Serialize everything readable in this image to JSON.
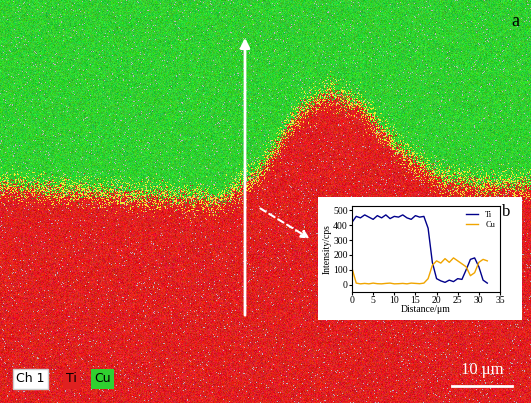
{
  "panel_labels": [
    "a",
    "b"
  ],
  "map_legend": {
    "channel": "Ch 1",
    "elements": [
      {
        "name": "Ti",
        "color": "#e02020"
      },
      {
        "name": "Cu",
        "color": "#30d030"
      }
    ]
  },
  "scale_bar": "10 μm",
  "chart_data": {
    "type": "line",
    "x_label": "Distance/μm",
    "y_label": "Intensity/cps",
    "x": [
      0,
      1,
      2,
      3,
      4,
      5,
      6,
      7,
      8,
      9,
      10,
      11,
      12,
      13,
      14,
      15,
      16,
      17,
      18,
      19,
      20,
      21,
      22,
      23,
      24,
      25,
      26,
      27,
      28,
      29,
      30,
      31,
      32
    ],
    "series": [
      {
        "name": "Ti",
        "color": "#00008b",
        "values": [
          420,
          460,
          450,
          470,
          455,
          440,
          465,
          450,
          470,
          445,
          460,
          455,
          470,
          450,
          440,
          465,
          455,
          460,
          380,
          150,
          40,
          25,
          15,
          30,
          20,
          40,
          35,
          100,
          170,
          180,
          120,
          30,
          10
        ]
      },
      {
        "name": "Cu",
        "color": "#f0a500",
        "values": [
          110,
          10,
          5,
          8,
          5,
          10,
          6,
          5,
          8,
          10,
          5,
          6,
          8,
          5,
          10,
          8,
          6,
          10,
          40,
          130,
          160,
          145,
          175,
          150,
          180,
          160,
          140,
          120,
          60,
          80,
          150,
          170,
          160
        ]
      }
    ],
    "xlim": [
      0,
      35
    ],
    "xticks": [
      0,
      5,
      10,
      15,
      20,
      25,
      30,
      35
    ],
    "ylim": [
      -50,
      530
    ],
    "yticks": [
      0,
      100,
      200,
      300,
      400,
      500
    ],
    "legend": "upper right"
  }
}
